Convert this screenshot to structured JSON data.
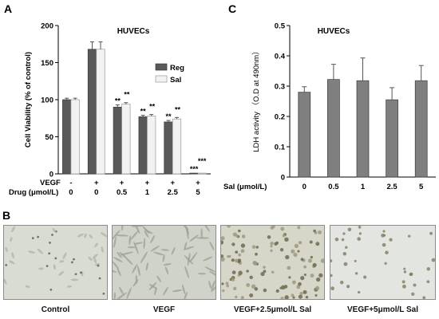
{
  "panels": {
    "a": {
      "letter": "A"
    },
    "b": {
      "letter": "B"
    },
    "c": {
      "letter": "C"
    }
  },
  "chart_data": [
    {
      "panel": "A",
      "type": "bar",
      "title": "HUVECs",
      "ylabel": "Cell Viability (% of control)",
      "ylim": [
        0,
        200
      ],
      "yticks": [
        0,
        50,
        100,
        150,
        200
      ],
      "row_labels": {
        "vegf": "VEGF",
        "drug": "Drug (μmol/L)"
      },
      "categories": [
        {
          "vegf": "-",
          "drug": "0"
        },
        {
          "vegf": "+",
          "drug": "0"
        },
        {
          "vegf": "+",
          "drug": "0.5"
        },
        {
          "vegf": "+",
          "drug": "1"
        },
        {
          "vegf": "+",
          "drug": "2.5"
        },
        {
          "vegf": "+",
          "drug": "5"
        }
      ],
      "legend_placement": "right",
      "series": [
        {
          "name": "Reg",
          "color": "#595959",
          "values": [
            100,
            168,
            90,
            77,
            70,
            1
          ],
          "errors": [
            2,
            10,
            3,
            2,
            2,
            0
          ],
          "sig": [
            "",
            "",
            "**",
            "**",
            "**",
            "***"
          ]
        },
        {
          "name": "Sal",
          "color": "#f2f2f2",
          "values": [
            100,
            168,
            94,
            78,
            74,
            1
          ],
          "errors": [
            2,
            10,
            2,
            2,
            2,
            0
          ],
          "sig": [
            "",
            "",
            "**",
            "**",
            "**",
            "***"
          ]
        }
      ]
    },
    {
      "panel": "C",
      "type": "bar",
      "title": "HUVECs",
      "ylabel": "LDH activity （O.D at 490nm）",
      "ylim": [
        0,
        0.5
      ],
      "yticks": [
        "0",
        "0.1",
        "0.2",
        "0.3",
        "0.4",
        "0.5"
      ],
      "row_labels": {
        "sal": "Sal (μmol/L)"
      },
      "categories": [
        "0",
        "0.5",
        "1",
        "2.5",
        "5"
      ],
      "series": [
        {
          "color": "#7f7f7f",
          "values": [
            0.28,
            0.322,
            0.318,
            0.255,
            0.318
          ],
          "errors": [
            0.018,
            0.05,
            0.075,
            0.04,
            0.05
          ]
        }
      ]
    }
  ],
  "micrographs": [
    {
      "caption": "Control",
      "tone": "#d9dcd3",
      "style": "sparse"
    },
    {
      "caption": "VEGF",
      "tone": "#cfd3ca",
      "style": "elongated"
    },
    {
      "caption": "VEGF+2.5μmol/L Sal",
      "tone": "#d6d6c9",
      "style": "rounded"
    },
    {
      "caption": "VEGF+5μmol/L Sal",
      "tone": "#e3e5e0",
      "style": "few"
    }
  ]
}
